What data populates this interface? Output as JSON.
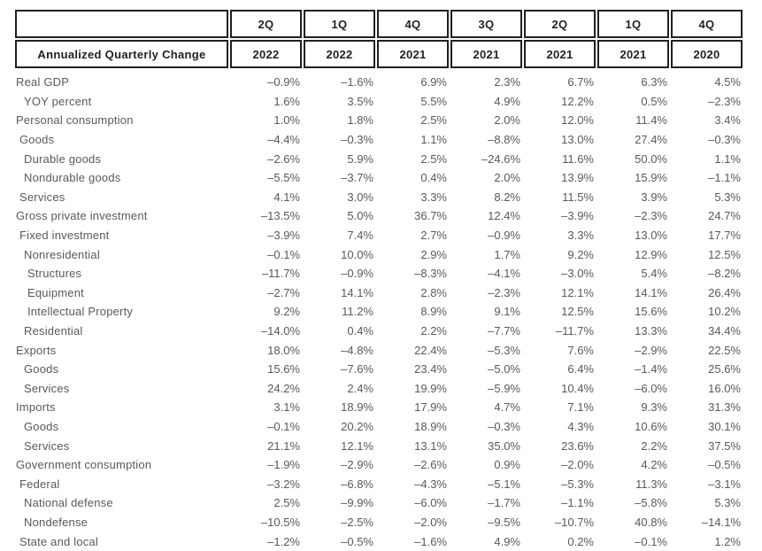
{
  "table": {
    "corner_label": "",
    "header_label": "Annualized Quarterly Change",
    "columns": [
      {
        "quarter": "2Q",
        "year": "2022"
      },
      {
        "quarter": "1Q",
        "year": "2022"
      },
      {
        "quarter": "4Q",
        "year": "2021"
      },
      {
        "quarter": "3Q",
        "year": "2021"
      },
      {
        "quarter": "2Q",
        "year": "2021"
      },
      {
        "quarter": "1Q",
        "year": "2021"
      },
      {
        "quarter": "4Q",
        "year": "2020"
      }
    ],
    "rows": [
      {
        "label": "Real GDP",
        "indent": 0,
        "values": [
          "–0.9%",
          "–1.6%",
          "6.9%",
          "2.3%",
          "6.7%",
          "6.3%",
          "4.5%"
        ]
      },
      {
        "label": "YOY percent",
        "indent": 2,
        "values": [
          "1.6%",
          "3.5%",
          "5.5%",
          "4.9%",
          "12.2%",
          "0.5%",
          "–2.3%"
        ]
      },
      {
        "label": "Personal consumption",
        "indent": 0,
        "values": [
          "1.0%",
          "1.8%",
          "2.5%",
          "2.0%",
          "12.0%",
          "11.4%",
          "3.4%"
        ]
      },
      {
        "label": "Goods",
        "indent": 1,
        "values": [
          "–4.4%",
          "–0.3%",
          "1.1%",
          "–8.8%",
          "13.0%",
          "27.4%",
          "–0.3%"
        ]
      },
      {
        "label": "Durable goods",
        "indent": 2,
        "values": [
          "–2.6%",
          "5.9%",
          "2.5%",
          "–24.6%",
          "11.6%",
          "50.0%",
          "1.1%"
        ]
      },
      {
        "label": "Nondurable goods",
        "indent": 2,
        "values": [
          "–5.5%",
          "–3.7%",
          "0.4%",
          "2.0%",
          "13.9%",
          "15.9%",
          "–1.1%"
        ]
      },
      {
        "label": "Services",
        "indent": 1,
        "values": [
          "4.1%",
          "3.0%",
          "3.3%",
          "8.2%",
          "11.5%",
          "3.9%",
          "5.3%"
        ]
      },
      {
        "label": "Gross private investment",
        "indent": 0,
        "values": [
          "–13.5%",
          "5.0%",
          "36.7%",
          "12.4%",
          "–3.9%",
          "–2.3%",
          "24.7%"
        ]
      },
      {
        "label": "Fixed investment",
        "indent": 1,
        "values": [
          "–3.9%",
          "7.4%",
          "2.7%",
          "–0.9%",
          "3.3%",
          "13.0%",
          "17.7%"
        ]
      },
      {
        "label": "Nonresidential",
        "indent": 2,
        "values": [
          "–0.1%",
          "10.0%",
          "2.9%",
          "1.7%",
          "9.2%",
          "12.9%",
          "12.5%"
        ]
      },
      {
        "label": "Structures",
        "indent": 3,
        "values": [
          "–11.7%",
          "–0.9%",
          "–8.3%",
          "–4.1%",
          "–3.0%",
          "5.4%",
          "–8.2%"
        ]
      },
      {
        "label": "Equipment",
        "indent": 3,
        "values": [
          "–2.7%",
          "14.1%",
          "2.8%",
          "–2.3%",
          "12.1%",
          "14.1%",
          "26.4%"
        ]
      },
      {
        "label": "Intellectual Property",
        "indent": 3,
        "values": [
          "9.2%",
          "11.2%",
          "8.9%",
          "9.1%",
          "12.5%",
          "15.6%",
          "10.2%"
        ]
      },
      {
        "label": "Residential",
        "indent": 2,
        "values": [
          "–14.0%",
          "0.4%",
          "2.2%",
          "–7.7%",
          "–11.7%",
          "13.3%",
          "34.4%"
        ]
      },
      {
        "label": "Exports",
        "indent": 0,
        "values": [
          "18.0%",
          "–4.8%",
          "22.4%",
          "–5.3%",
          "7.6%",
          "–2.9%",
          "22.5%"
        ]
      },
      {
        "label": "Goods",
        "indent": 2,
        "values": [
          "15.6%",
          "–7.6%",
          "23.4%",
          "–5.0%",
          "6.4%",
          "–1.4%",
          "25.6%"
        ]
      },
      {
        "label": "Services",
        "indent": 2,
        "values": [
          "24.2%",
          "2.4%",
          "19.9%",
          "–5.9%",
          "10.4%",
          "–6.0%",
          "16.0%"
        ]
      },
      {
        "label": "Imports",
        "indent": 0,
        "values": [
          "3.1%",
          "18.9%",
          "17.9%",
          "4.7%",
          "7.1%",
          "9.3%",
          "31.3%"
        ]
      },
      {
        "label": "Goods",
        "indent": 2,
        "values": [
          "–0.1%",
          "20.2%",
          "18.9%",
          "–0.3%",
          "4.3%",
          "10.6%",
          "30.1%"
        ]
      },
      {
        "label": "Services",
        "indent": 2,
        "values": [
          "21.1%",
          "12.1%",
          "13.1%",
          "35.0%",
          "23.6%",
          "2.2%",
          "37.5%"
        ]
      },
      {
        "label": "Government consumption",
        "indent": 0,
        "values": [
          "–1.9%",
          "–2.9%",
          "–2.6%",
          "0.9%",
          "–2.0%",
          "4.2%",
          "–0.5%"
        ]
      },
      {
        "label": "Federal",
        "indent": 1,
        "values": [
          "–3.2%",
          "–6.8%",
          "–4.3%",
          "–5.1%",
          "–5.3%",
          "11.3%",
          "–3.1%"
        ]
      },
      {
        "label": "National defense",
        "indent": 2,
        "values": [
          "2.5%",
          "–9.9%",
          "–6.0%",
          "–1.7%",
          "–1.1%",
          "–5.8%",
          "5.3%"
        ]
      },
      {
        "label": "Nondefense",
        "indent": 2,
        "values": [
          "–10.5%",
          "–2.5%",
          "–2.0%",
          "–9.5%",
          "–10.7%",
          "40.8%",
          "–14.1%"
        ]
      },
      {
        "label": "State and local",
        "indent": 1,
        "values": [
          "–1.2%",
          "–0.5%",
          "–1.6%",
          "4.9%",
          "0.2%",
          "–0.1%",
          "1.2%"
        ]
      }
    ],
    "colors": {
      "border": "#231f20",
      "header_text": "#231f20",
      "body_text": "#58595b",
      "background": "#ffffff"
    }
  }
}
